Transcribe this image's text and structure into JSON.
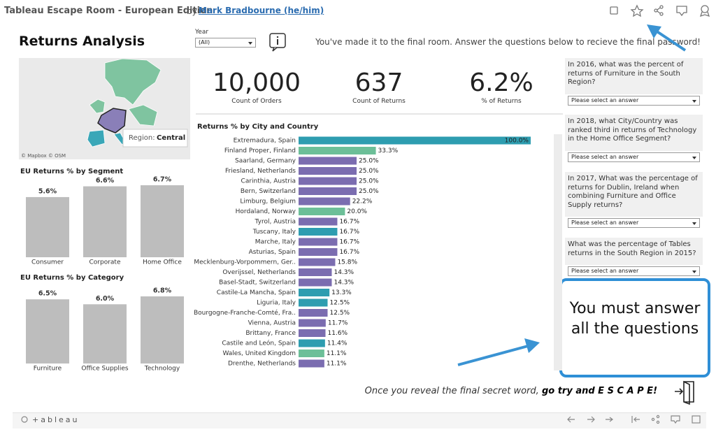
{
  "header": {
    "title": "Tableau Escape Room - European Edition",
    "by": "by",
    "author": "Mark Bradbourne (he/him)"
  },
  "dashboard": {
    "title": "Returns Analysis",
    "year_filter": {
      "label": "Year",
      "value": "(All)"
    },
    "instruction": "You've made it to the final room. Answer the questions below to recieve the final password!",
    "map": {
      "attribution": "© Mapbox © OSM",
      "tooltip_label": "Region:",
      "tooltip_value": "Central"
    },
    "kpis": [
      {
        "value": "10,000",
        "label": "Count of Orders"
      },
      {
        "value": "637",
        "label": "Count of Returns"
      },
      {
        "value": "6.2%",
        "label": "% of Returns"
      }
    ],
    "questions": [
      {
        "text": "In 2016, what was the percent of returns of Furniture in the South Region?",
        "placeholder": "Please select an answer"
      },
      {
        "text": "In 2018, what City/Country was ranked third in returns of Technology in the Home Office Segment?",
        "placeholder": "Please select an answer"
      },
      {
        "text": "In 2017, What was the percentage of returns for Dublin, Ireland when combining Furniture and Office Supply returns?",
        "placeholder": "Please select an answer"
      },
      {
        "text": "What was the percentage of Tables returns in the South Region in 2015?",
        "placeholder": "Please select an answer"
      }
    ],
    "notice": "You must answer all the questions",
    "footer": {
      "text": "Once you reveal the final secret word,",
      "emphasis": "go try and E S C A P E!"
    },
    "brand": "+ableau"
  },
  "chart_data": [
    {
      "type": "bar",
      "title": "EU Returns % by Segment",
      "categories": [
        "Consumer",
        "Corporate",
        "Home Office"
      ],
      "values": [
        5.6,
        6.6,
        6.7
      ],
      "value_labels": [
        "5.6%",
        "6.6%",
        "6.7%"
      ],
      "color": "#bdbdbd"
    },
    {
      "type": "bar",
      "title": "EU Returns % by Category",
      "categories": [
        "Furniture",
        "Office Supplies",
        "Technology"
      ],
      "values": [
        6.5,
        6.0,
        6.8
      ],
      "value_labels": [
        "6.5%",
        "6.0%",
        "6.8%"
      ],
      "color": "#bdbdbd"
    },
    {
      "type": "hbar",
      "title": "Returns % by City and Country",
      "categories": [
        "Extremadura, Spain",
        "Finland Proper, Finland",
        "Saarland, Germany",
        "Friesland, Netherlands",
        "Carinthia, Austria",
        "Bern, Switzerland",
        "Limburg, Belgium",
        "Hordaland, Norway",
        "Tyrol, Austria",
        "Tuscany, Italy",
        "Marche, Italy",
        "Asturias, Spain",
        "Mecklenburg-Vorpommern, Ger..",
        "Overijssel, Netherlands",
        "Basel-Stadt, Switzerland",
        "Castile-La Mancha, Spain",
        "Liguria, Italy",
        "Bourgogne-Franche-Comté, Fra..",
        "Vienna, Austria",
        "Brittany, France",
        "Castile and León, Spain",
        "Wales, United Kingdom",
        "Drenthe, Netherlands"
      ],
      "values": [
        100.0,
        33.3,
        25.0,
        25.0,
        25.0,
        25.0,
        22.2,
        20.0,
        16.7,
        16.7,
        16.7,
        16.7,
        15.8,
        14.3,
        14.3,
        13.3,
        12.5,
        12.5,
        11.7,
        11.6,
        11.4,
        11.1,
        11.1
      ],
      "value_labels": [
        "100.0%",
        "33.3%",
        "25.0%",
        "25.0%",
        "25.0%",
        "25.0%",
        "22.2%",
        "20.0%",
        "16.7%",
        "16.7%",
        "16.7%",
        "16.7%",
        "15.8%",
        "14.3%",
        "14.3%",
        "13.3%",
        "12.5%",
        "12.5%",
        "11.7%",
        "11.6%",
        "11.4%",
        "11.1%",
        "11.1%"
      ],
      "colors": [
        "#2e9db0",
        "#6cbf98",
        "#7b6db0",
        "#7b6db0",
        "#7b6db0",
        "#7b6db0",
        "#7b6db0",
        "#6cbf98",
        "#7b6db0",
        "#2e9db0",
        "#7b6db0",
        "#7b6db0",
        "#7b6db0",
        "#7b6db0",
        "#7b6db0",
        "#2e9db0",
        "#2e9db0",
        "#7b6db0",
        "#7b6db0",
        "#7b6db0",
        "#2e9db0",
        "#6cbf98",
        "#7b6db0"
      ]
    }
  ]
}
